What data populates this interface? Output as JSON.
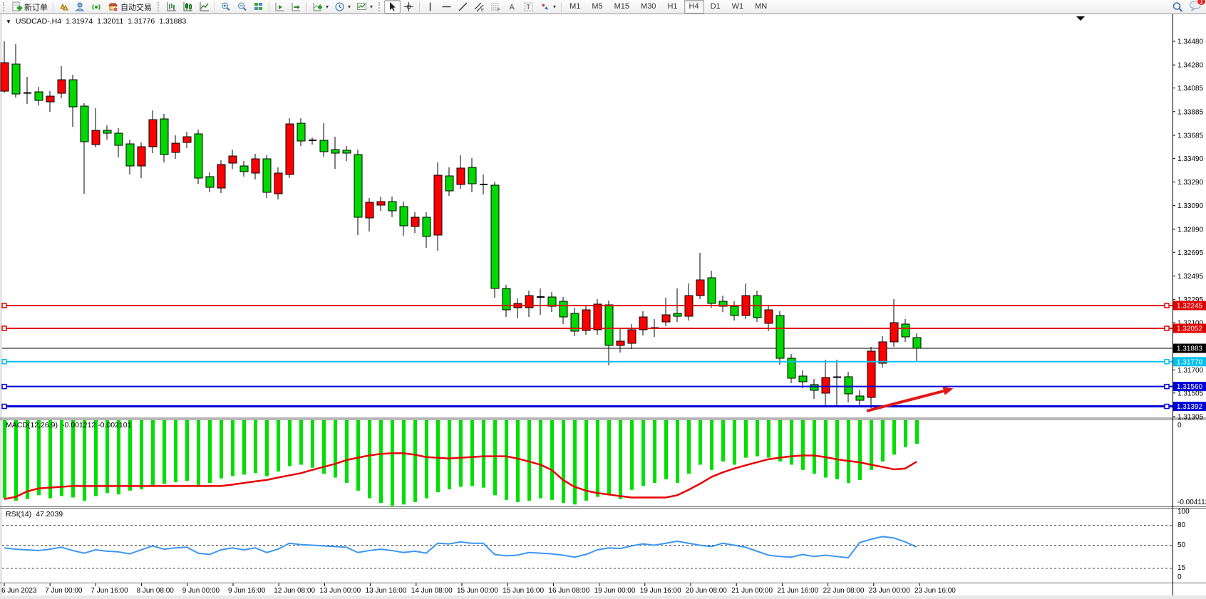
{
  "toolbar": {
    "new_order_label": "新订单",
    "auto_trading_label": "自动交易",
    "timeframes": [
      "M1",
      "M5",
      "M15",
      "M30",
      "H1",
      "H4",
      "D1",
      "W1",
      "MN"
    ],
    "active_timeframe": "H4",
    "notification_badge": "1"
  },
  "quote_line": {
    "expander": "▼",
    "symbol": "USDCAD-,H4",
    "open": "1.31974",
    "high": "1.32011",
    "low": "1.31776",
    "close": "1.31883"
  },
  "indicators": {
    "macd_label": "MACD(12,26,9)",
    "macd_values": "-0.001212 -0.002101",
    "rsi_label": "RSI(14)",
    "rsi_value": "47.2039"
  },
  "chart_data": {
    "type": "candlestick",
    "symbol": "USDCAD-",
    "timeframe": "H4",
    "up_color": "#ff0000",
    "down_color": "#00d800",
    "x_labels": [
      "6 Jun 2023",
      "7 Jun 00:00",
      "7 Jun 16:00",
      "8 Jun 08:00",
      "9 Jun 00:00",
      "9 Jun 16:00",
      "12 Jun 08:00",
      "13 Jun 00:00",
      "13 Jun 16:00",
      "14 Jun 08:00",
      "15 Jun 00:00",
      "15 Jun 16:00",
      "16 Jun 08:00",
      "19 Jun 00:00",
      "19 Jun 16:00",
      "20 Jun 08:00",
      "21 Jun 00:00",
      "21 Jun 16:00",
      "22 Jun 08:00",
      "23 Jun 00:00",
      "23 Jun 16:00"
    ],
    "price_ticks": [
      "1.34480",
      "1.34280",
      "1.34085",
      "1.33885",
      "1.33685",
      "1.33490",
      "1.33290",
      "1.33090",
      "1.32890",
      "1.32695",
      "1.32495",
      "1.32295",
      "1.32100",
      "1.31700",
      "1.31505",
      "1.31305"
    ],
    "candles": [
      [
        1.34057,
        1.3448,
        1.34046,
        1.34299
      ],
      [
        1.34287,
        1.34456,
        1.34004,
        1.34034
      ],
      [
        1.34043,
        1.34179,
        1.3395,
        1.34043
      ],
      [
        1.34052,
        1.34094,
        1.33938,
        1.3398
      ],
      [
        1.33968,
        1.34058,
        1.33884,
        1.34016
      ],
      [
        1.3404,
        1.34269,
        1.33998,
        1.34155
      ],
      [
        1.34155,
        1.34197,
        1.33757,
        1.33926
      ],
      [
        1.33932,
        1.33956,
        1.33191,
        1.33631
      ],
      [
        1.33606,
        1.33914,
        1.33582,
        1.33727
      ],
      [
        1.33727,
        1.33769,
        1.33649,
        1.33703
      ],
      [
        1.33703,
        1.33745,
        1.33498,
        1.336
      ],
      [
        1.33612,
        1.33649,
        1.33353,
        1.33426
      ],
      [
        1.33426,
        1.33625,
        1.33323,
        1.33588
      ],
      [
        1.33588,
        1.33896,
        1.33534,
        1.33817
      ],
      [
        1.33823,
        1.33866,
        1.33456,
        1.33522
      ],
      [
        1.3354,
        1.33685,
        1.33486,
        1.33618
      ],
      [
        1.33625,
        1.33715,
        1.33576,
        1.33673
      ],
      [
        1.33697,
        1.33733,
        1.33275,
        1.33323
      ],
      [
        1.33335,
        1.33371,
        1.33203,
        1.33245
      ],
      [
        1.33239,
        1.33474,
        1.33197,
        1.33438
      ],
      [
        1.3345,
        1.33564,
        1.33402,
        1.3351
      ],
      [
        1.33426,
        1.33468,
        1.33335,
        1.33377
      ],
      [
        1.33365,
        1.33528,
        1.33311,
        1.33486
      ],
      [
        1.33486,
        1.33516,
        1.33155,
        1.33203
      ],
      [
        1.33191,
        1.33414,
        1.33143,
        1.33365
      ],
      [
        1.33353,
        1.33829,
        1.33323,
        1.33781
      ],
      [
        1.33787,
        1.33829,
        1.33594,
        1.33637
      ],
      [
        1.33643,
        1.33667,
        1.33607,
        1.33643
      ],
      [
        1.33643,
        1.33787,
        1.33504,
        1.33546
      ],
      [
        1.33564,
        1.33673,
        1.33402,
        1.33534
      ],
      [
        1.33558,
        1.33594,
        1.33468,
        1.33534
      ],
      [
        1.33522,
        1.33564,
        1.32841,
        1.32992
      ],
      [
        1.32986,
        1.33155,
        1.32871,
        1.33118
      ],
      [
        1.33094,
        1.33167,
        1.33046,
        1.33124
      ],
      [
        1.33124,
        1.33167,
        1.32992,
        1.33046
      ],
      [
        1.33082,
        1.33124,
        1.32835,
        1.3292
      ],
      [
        1.32914,
        1.33034,
        1.32859,
        1.32992
      ],
      [
        1.32992,
        1.33034,
        1.32733,
        1.32829
      ],
      [
        1.32841,
        1.33456,
        1.32709,
        1.33347
      ],
      [
        1.33341,
        1.33414,
        1.33173,
        1.33215
      ],
      [
        1.33269,
        1.33516,
        1.33233,
        1.33408
      ],
      [
        1.33414,
        1.33492,
        1.33203,
        1.33275
      ],
      [
        1.33269,
        1.33353,
        1.33185,
        1.33269
      ],
      [
        1.33263,
        1.33293,
        1.32311,
        1.32389
      ],
      [
        1.32389,
        1.3242,
        1.32148,
        1.32208
      ],
      [
        1.32226,
        1.32305,
        1.32136,
        1.32263
      ],
      [
        1.32226,
        1.32371,
        1.32148,
        1.32329
      ],
      [
        1.32317,
        1.32389,
        1.32166,
        1.32317
      ],
      [
        1.32317,
        1.32359,
        1.3219,
        1.32239
      ],
      [
        1.32281,
        1.32317,
        1.32088,
        1.32148
      ],
      [
        1.32178,
        1.32226,
        1.31986,
        1.32028
      ],
      [
        1.32034,
        1.32251,
        1.31998,
        1.32208
      ],
      [
        1.3204,
        1.32299,
        1.31998,
        1.32257
      ],
      [
        1.32251,
        1.32287,
        1.31739,
        1.31907
      ],
      [
        1.31907,
        1.32058,
        1.31847,
        1.31943
      ],
      [
        1.31925,
        1.32088,
        1.31877,
        1.3204
      ],
      [
        1.3204,
        1.32196,
        1.31992,
        1.32148
      ],
      [
        1.32055,
        1.3213,
        1.3198,
        1.32055
      ],
      [
        1.32106,
        1.32311,
        1.3207,
        1.32166
      ],
      [
        1.32178,
        1.32389,
        1.32106,
        1.32154
      ],
      [
        1.32154,
        1.32431,
        1.32118,
        1.32329
      ],
      [
        1.32329,
        1.32691,
        1.32299,
        1.32462
      ],
      [
        1.3248,
        1.3254,
        1.32226,
        1.32263
      ],
      [
        1.32281,
        1.32329,
        1.3219,
        1.32239
      ],
      [
        1.32239,
        1.32281,
        1.32118,
        1.3216
      ],
      [
        1.3216,
        1.32431,
        1.3213,
        1.32329
      ],
      [
        1.32329,
        1.32371,
        1.32106,
        1.32142
      ],
      [
        1.32094,
        1.32251,
        1.32028,
        1.32208
      ],
      [
        1.3216,
        1.32196,
        1.31745,
        1.31799
      ],
      [
        1.31799,
        1.31835,
        1.31588,
        1.3163
      ],
      [
        1.31648,
        1.31697,
        1.31546,
        1.316
      ],
      [
        1.31576,
        1.31624,
        1.31455,
        1.31527
      ],
      [
        1.31503,
        1.31787,
        1.31383,
        1.31636
      ],
      [
        1.31639,
        1.31787,
        1.31396,
        1.31639
      ],
      [
        1.31642,
        1.31685,
        1.31426,
        1.31497
      ],
      [
        1.31479,
        1.31527,
        1.31383,
        1.31443
      ],
      [
        1.31467,
        1.31895,
        1.31377,
        1.31859
      ],
      [
        1.31757,
        1.31986,
        1.31721,
        1.31937
      ],
      [
        1.31937,
        1.32299,
        1.31895,
        1.321
      ],
      [
        1.32088,
        1.3213,
        1.31937,
        1.3198
      ],
      [
        1.31974,
        1.32011,
        1.31776,
        1.31883
      ]
    ],
    "bid_line": {
      "price": 1.31883,
      "label": "1.31883",
      "color": "#000000"
    },
    "levels": [
      {
        "name": "resistance-line-1",
        "price": 1.32245,
        "label": "1.32245",
        "color": "#e00000",
        "width": 2
      },
      {
        "name": "resistance-line-2",
        "price": 1.32052,
        "label": "1.32052",
        "color": "#e00000",
        "width": 2
      },
      {
        "name": "support-line-cyan",
        "price": 1.3177,
        "label": "1.31770",
        "color": "#00c0ee",
        "width": 2
      },
      {
        "name": "support-line-blue-1",
        "price": 1.3156,
        "label": "1.31560",
        "color": "#0000d8",
        "width": 2
      },
      {
        "name": "support-line-blue-2",
        "price": 1.31392,
        "label": "1.31392",
        "color": "#0000d8",
        "width": 3
      }
    ],
    "arrow_annotation": {
      "from": [
        1216,
        577
      ],
      "to": [
        1324,
        549
      ],
      "color": "#e01818"
    },
    "macd": {
      "params": "12,26,9",
      "ticks": [
        "0",
        "-0.004113"
      ],
      "histogram_color": "#00e000",
      "signal_color": "#e80000",
      "histogram": [
        -0.00392,
        -0.00404,
        -0.00396,
        -0.00377,
        -0.00392,
        -0.00381,
        -0.00388,
        -0.00404,
        -0.00381,
        -0.00366,
        -0.00373,
        -0.00354,
        -0.00347,
        -0.00331,
        -0.0032,
        -0.00312,
        -0.00305,
        -0.00331,
        -0.00316,
        -0.00293,
        -0.00282,
        -0.00274,
        -0.00267,
        -0.00282,
        -0.00259,
        -0.00232,
        -0.00225,
        -0.0024,
        -0.0027,
        -0.00289,
        -0.00316,
        -0.00354,
        -0.00392,
        -0.00415,
        -0.0043,
        -0.00423,
        -0.00411,
        -0.00392,
        -0.00362,
        -0.00347,
        -0.00335,
        -0.00331,
        -0.00339,
        -0.00377,
        -0.004,
        -0.00411,
        -0.00404,
        -0.00392,
        -0.004,
        -0.00415,
        -0.00423,
        -0.00404,
        -0.00385,
        -0.00377,
        -0.00396,
        -0.0035,
        -0.00331,
        -0.00316,
        -0.00297,
        -0.00316,
        -0.0027,
        -0.00225,
        -0.00251,
        -0.00209,
        -0.00225,
        -0.0019,
        -0.00183,
        -0.0019,
        -0.00209,
        -0.00225,
        -0.00251,
        -0.0027,
        -0.00289,
        -0.00297,
        -0.00316,
        -0.00301,
        -0.00251,
        -0.00209,
        -0.00175,
        -0.00137,
        -0.001212
      ],
      "signal": [
        -0.00396,
        -0.00385,
        -0.00358,
        -0.00343,
        -0.00339,
        -0.00335,
        -0.00331,
        -0.00331,
        -0.00331,
        -0.00331,
        -0.00331,
        -0.00331,
        -0.00331,
        -0.00331,
        -0.00331,
        -0.00331,
        -0.00331,
        -0.00331,
        -0.00331,
        -0.00331,
        -0.00324,
        -0.00316,
        -0.00308,
        -0.00301,
        -0.00289,
        -0.00278,
        -0.00267,
        -0.00251,
        -0.00236,
        -0.00221,
        -0.00202,
        -0.0019,
        -0.00179,
        -0.00171,
        -0.00168,
        -0.00168,
        -0.00175,
        -0.00187,
        -0.0019,
        -0.00194,
        -0.0019,
        -0.00187,
        -0.00183,
        -0.00183,
        -0.00183,
        -0.00194,
        -0.00209,
        -0.00225,
        -0.00251,
        -0.00301,
        -0.00335,
        -0.00354,
        -0.00366,
        -0.00373,
        -0.00381,
        -0.00388,
        -0.00388,
        -0.00388,
        -0.00388,
        -0.00377,
        -0.0035,
        -0.0032,
        -0.00286,
        -0.00263,
        -0.00244,
        -0.00228,
        -0.00213,
        -0.00198,
        -0.0019,
        -0.00183,
        -0.00179,
        -0.00179,
        -0.00187,
        -0.00198,
        -0.00206,
        -0.00213,
        -0.00225,
        -0.00236,
        -0.00248,
        -0.00244,
        -0.0021
      ]
    },
    "rsi": {
      "period": "14",
      "ticks": [
        "100",
        "80",
        "50",
        "15",
        "0"
      ],
      "dashed_levels": [
        80,
        50,
        15
      ],
      "color": "#3c96f0",
      "values": [
        46,
        44,
        43,
        42,
        44,
        47,
        42,
        38,
        43,
        41,
        40,
        37,
        43,
        49,
        44,
        46,
        47,
        38,
        36,
        43,
        46,
        43,
        46,
        39,
        44,
        53,
        51,
        50,
        49,
        48,
        47,
        39,
        42,
        44,
        42,
        39,
        41,
        38,
        53,
        52,
        55,
        53,
        53,
        36,
        34,
        35,
        39,
        38,
        37,
        35,
        32,
        36,
        43,
        46,
        45,
        49,
        52,
        50,
        53,
        56,
        53,
        50,
        48,
        53,
        50,
        47,
        41,
        35,
        33,
        32,
        36,
        33,
        35,
        33,
        31,
        54,
        59,
        63,
        61,
        55,
        47.2
      ]
    }
  }
}
